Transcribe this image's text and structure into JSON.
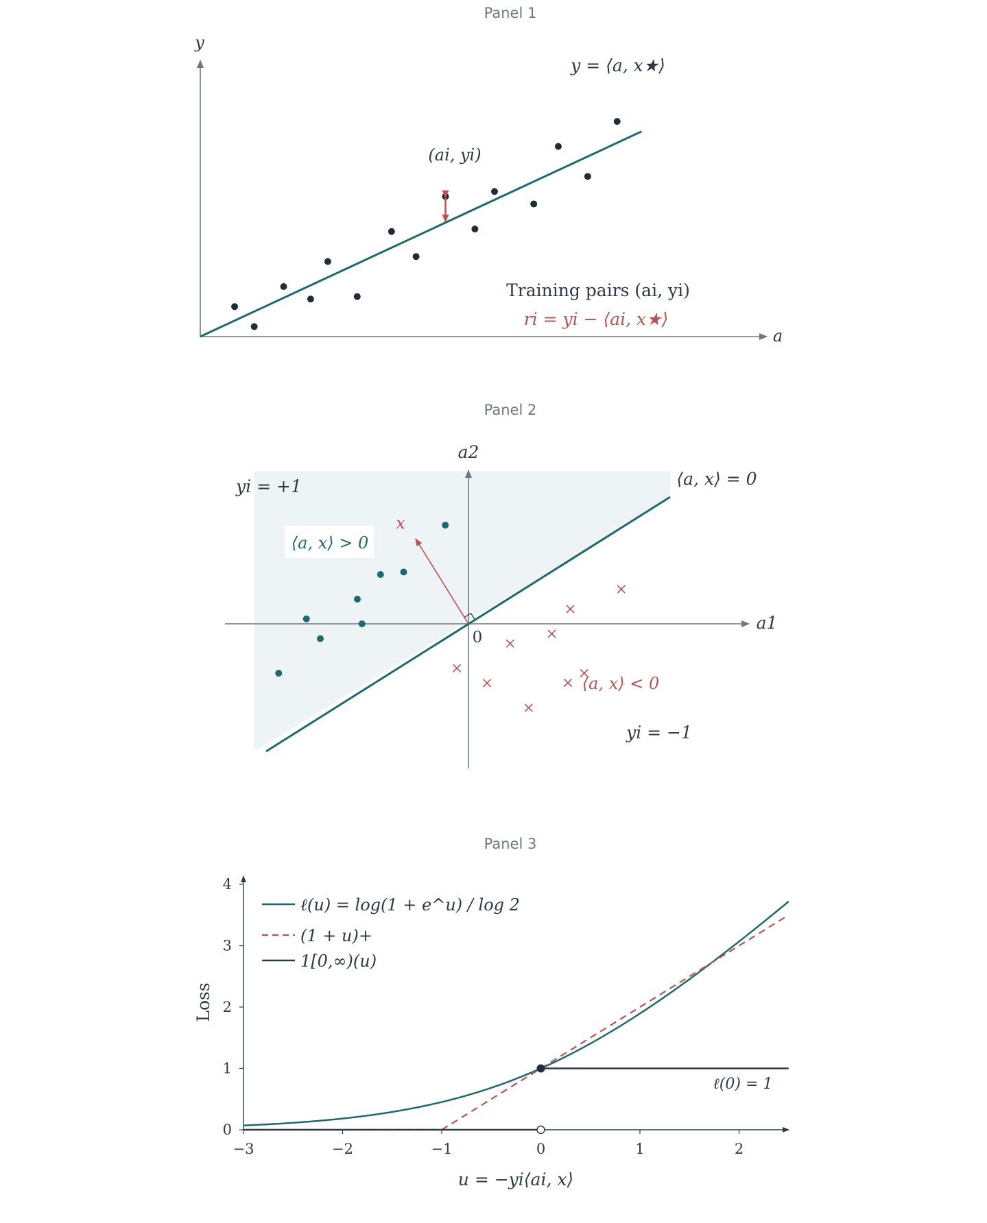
{
  "chart_data": [
    {
      "type": "scatter",
      "title": "Panel 1",
      "xlabel": "a",
      "ylabel": "y",
      "grid": false,
      "x_range": [
        0,
        10
      ],
      "y_range": [
        0,
        10
      ],
      "points": [
        {
          "x": 0.7,
          "y": 1.2
        },
        {
          "x": 1.1,
          "y": 0.4
        },
        {
          "x": 1.7,
          "y": 2.0
        },
        {
          "x": 2.25,
          "y": 1.5
        },
        {
          "x": 2.6,
          "y": 3.0
        },
        {
          "x": 3.2,
          "y": 1.6
        },
        {
          "x": 3.9,
          "y": 4.2
        },
        {
          "x": 4.4,
          "y": 3.2
        },
        {
          "x": 5.0,
          "y": 5.6
        },
        {
          "x": 5.6,
          "y": 4.3
        },
        {
          "x": 6.0,
          "y": 5.8
        },
        {
          "x": 6.8,
          "y": 5.3
        },
        {
          "x": 7.3,
          "y": 7.6
        },
        {
          "x": 7.9,
          "y": 6.4
        },
        {
          "x": 8.5,
          "y": 8.6
        }
      ],
      "line": {
        "from": {
          "x": 0,
          "y": 0
        },
        "to": {
          "x": 9.0,
          "y": 8.2
        },
        "label": "y = ⟨a, x★⟩"
      },
      "highlight": {
        "x": 5.0,
        "y": 5.6,
        "fitted": 4.55,
        "label": "(ai, yi)"
      },
      "annotations": [
        "Training pairs (ai, yi)",
        "ri = yi − ⟨ai, x★⟩"
      ]
    },
    {
      "type": "scatter",
      "title": "Panel 2",
      "xlabel": "a1",
      "ylabel": "a2",
      "grid": false,
      "x_range": [
        -5,
        5
      ],
      "y_range": [
        -3,
        3
      ],
      "positive_points": [
        {
          "x": -4.1,
          "y": -1.0
        },
        {
          "x": -3.5,
          "y": 0.1
        },
        {
          "x": -3.2,
          "y": -0.3
        },
        {
          "x": -2.4,
          "y": 0.5
        },
        {
          "x": -2.3,
          "y": 0.0
        },
        {
          "x": -1.9,
          "y": 1.0
        },
        {
          "x": -1.4,
          "y": 1.05
        },
        {
          "x": -0.5,
          "y": 2.0
        }
      ],
      "negative_points": [
        {
          "x": -0.25,
          "y": -0.9
        },
        {
          "x": 0.4,
          "y": -1.2
        },
        {
          "x": 0.9,
          "y": -0.4
        },
        {
          "x": 1.3,
          "y": -1.7
        },
        {
          "x": 1.8,
          "y": -0.2
        },
        {
          "x": 2.2,
          "y": 0.3
        },
        {
          "x": 2.5,
          "y": -1.0
        },
        {
          "x": 3.3,
          "y": 0.7
        }
      ],
      "boundary": {
        "label": "⟨a, x⟩ = 0"
      },
      "normal_vector_label": "x",
      "origin_label": "0",
      "region_labels": {
        "positive": "yi = +1",
        "positive_condition": "⟨a, x⟩ > 0",
        "negative": "yi = −1",
        "negative_condition": "⟨a, x⟩ < 0"
      }
    },
    {
      "type": "line",
      "title": "Panel 3",
      "xlabel": "u = −yi⟨ai, x⟩",
      "ylabel": "Loss",
      "xlim": [
        -3,
        2.5
      ],
      "ylim": [
        0,
        4
      ],
      "xticks": [
        "−3",
        "−2",
        "−1",
        "0",
        "1",
        "2"
      ],
      "yticks": [
        "0",
        "1",
        "2",
        "3",
        "4"
      ],
      "legend_position": "top-left",
      "series": [
        {
          "name": "ℓ(u) = log(1 + e^u) / log 2",
          "color": "#1a6b6e",
          "style": "solid"
        },
        {
          "name": "(1 + u)+",
          "color": "#c0504d",
          "style": "dashed"
        },
        {
          "name": "1[0,∞)(u)",
          "color": "#2b3a46",
          "style": "solid"
        }
      ],
      "annotation": "ℓ(0) = 1"
    }
  ]
}
